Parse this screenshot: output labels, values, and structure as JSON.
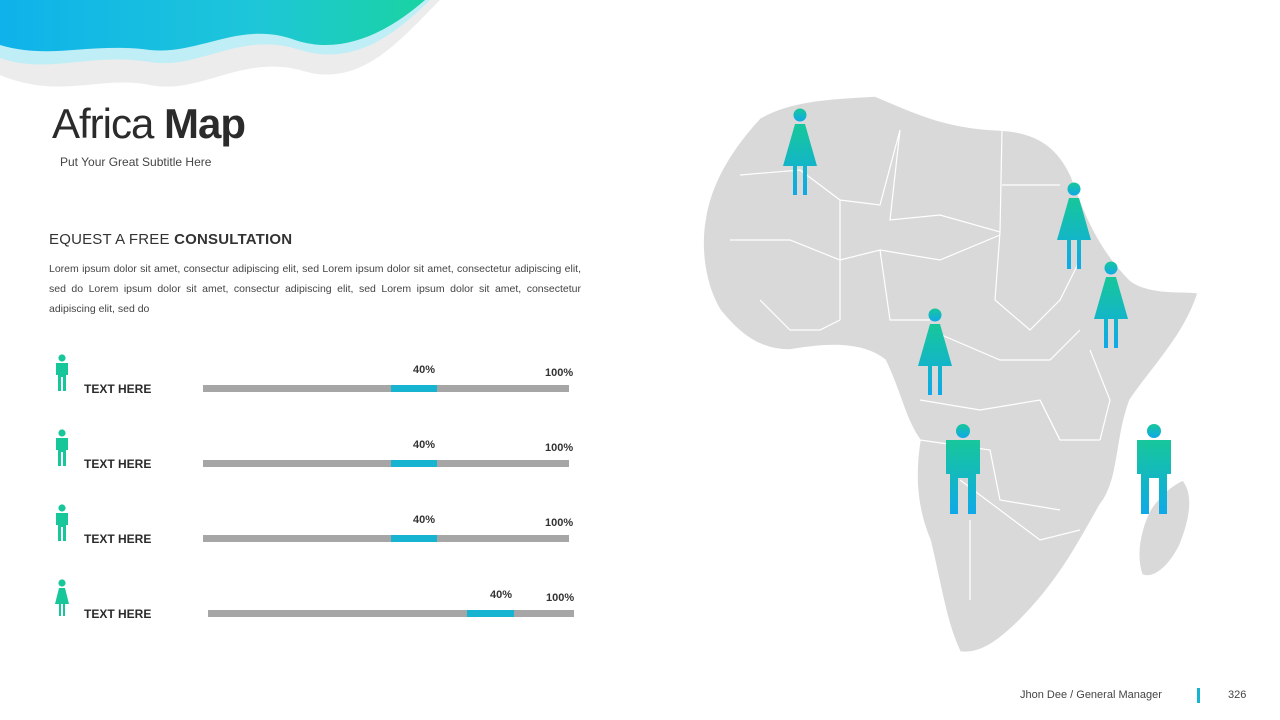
{
  "slide": {
    "title_light": "Africa",
    "title_bold": "Map",
    "subtitle": "Put Your Great Subtitle Here",
    "heading_light": "EQUEST A FREE",
    "heading_bold": "CONSULTATION",
    "paragraph": "Lorem ipsum dolor sit amet, consectur adipiscing elit, sed Lorem ipsum dolor sit amet, consectetur adipiscing elit, sed do Lorem ipsum dolor sit amet, consectur adipiscing elit, sed Lorem ipsum dolor sit amet, consectetur adipiscing elit, sed do"
  },
  "bars": [
    {
      "label": "TEXT HERE",
      "value_label": "40%",
      "max_label": "100%",
      "icon": "male-icon",
      "value": 40
    },
    {
      "label": "TEXT HERE",
      "value_label": "40%",
      "max_label": "100%",
      "icon": "male-icon",
      "value": 40
    },
    {
      "label": "TEXT HERE",
      "value_label": "40%",
      "max_label": "100%",
      "icon": "male-icon",
      "value": 40
    },
    {
      "label": "TEXT HERE",
      "value_label": "40%",
      "max_label": "100%",
      "icon": "female-icon",
      "value": 40
    }
  ],
  "map": {
    "region": "Africa",
    "markers": [
      "female-icon",
      "female-icon",
      "female-icon",
      "female-icon",
      "male-icon",
      "male-icon"
    ]
  },
  "footer": {
    "name": "Jhon Dee  / General  Manager",
    "page": "326"
  },
  "colors": {
    "accent_teal": "#16b4d0",
    "accent_green": "#17c79a",
    "map_fill": "#d9d9d9",
    "track": "#a6a6a6"
  }
}
